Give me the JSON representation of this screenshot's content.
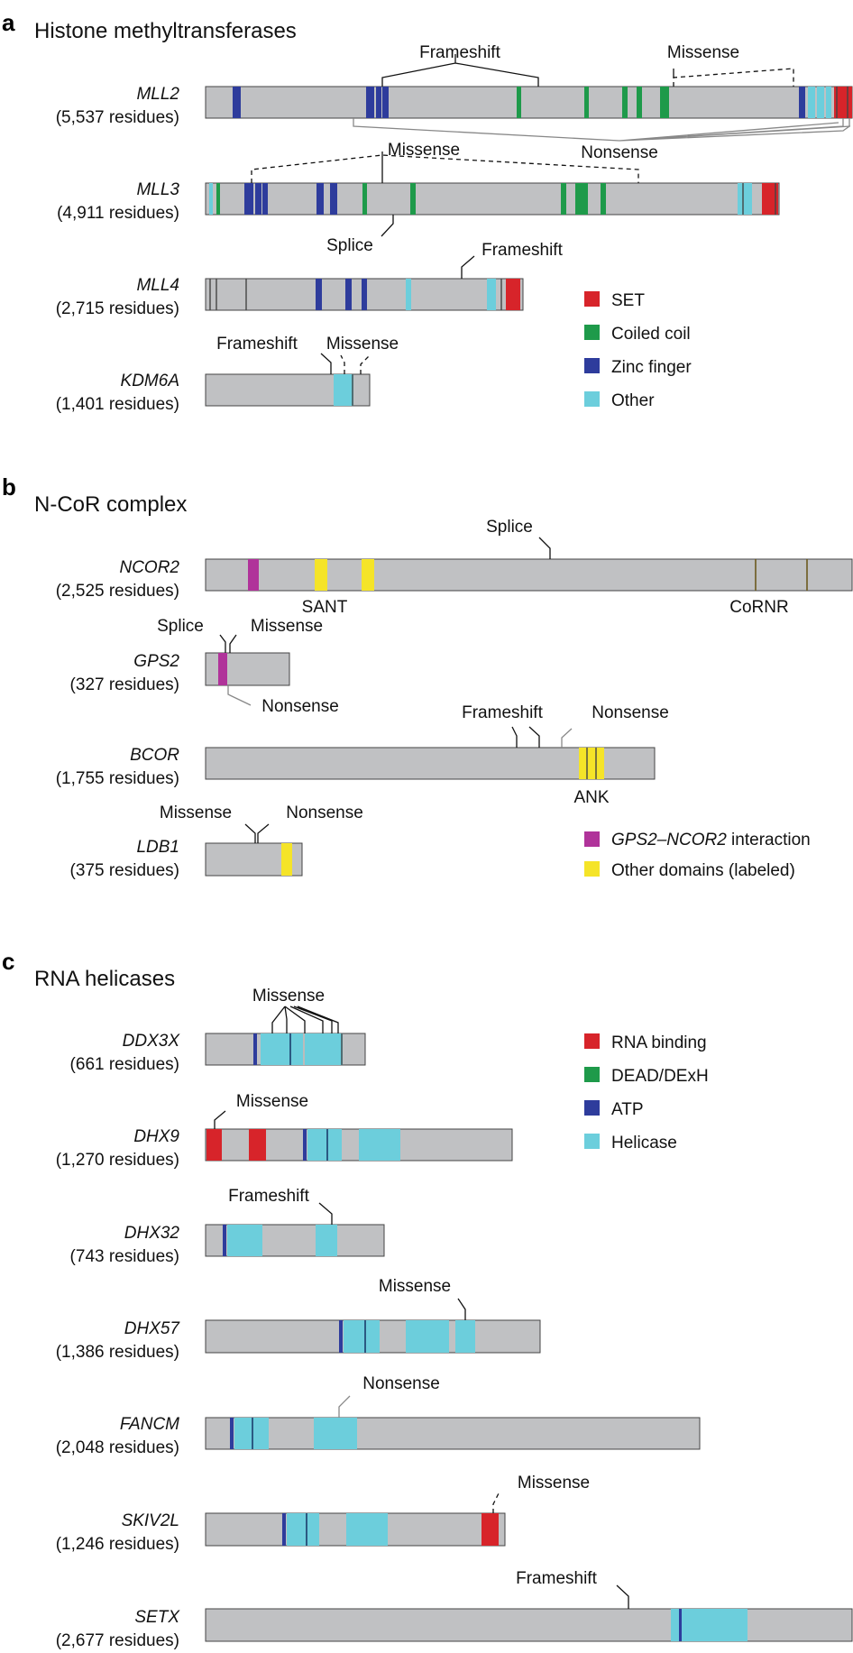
{
  "panels": {
    "a": {
      "letter": "a",
      "title": "Histone methyltransferases",
      "genes": [
        {
          "name": "MLL2",
          "residues": "(5,537 residues)"
        },
        {
          "name": "MLL3",
          "residues": "(4,911 residues)"
        },
        {
          "name": "MLL4",
          "residues": "(2,715 residues)"
        },
        {
          "name": "KDM6A",
          "residues": "(1,401 residues)"
        }
      ],
      "legend": [
        {
          "label": "SET",
          "color": "#d7242a"
        },
        {
          "label": "Coiled coil",
          "color": "#1e9a4a"
        },
        {
          "label": "Zinc finger",
          "color": "#2e3c9c"
        },
        {
          "label": "Other",
          "color": "#6ccedc"
        }
      ],
      "annotations": {
        "mll2_frameshift": "Frameshift",
        "mll2_missense": "Missense",
        "mll2_nonsense": "Nonsense",
        "mll3_missense": "Missense",
        "mll3_splice": "Splice",
        "mll4_frameshift": "Frameshift",
        "kdm6a_frameshift": "Frameshift",
        "kdm6a_missense": "Missense"
      }
    },
    "b": {
      "letter": "b",
      "title": "N-CoR complex",
      "genes": [
        {
          "name": "NCOR2",
          "residues": "(2,525 residues)"
        },
        {
          "name": "GPS2",
          "residues": "(327 residues)"
        },
        {
          "name": "BCOR",
          "residues": "(1,755 residues)"
        },
        {
          "name": "LDB1",
          "residues": "(375 residues)"
        }
      ],
      "legend": [
        {
          "label_italic": "GPS2–NCOR2",
          "label_rest": " interaction",
          "color": "#b0339a"
        },
        {
          "label": "Other domains (labeled)",
          "color": "#f5e428"
        }
      ],
      "annotations": {
        "ncor2_splice": "Splice",
        "ncor2_sant": "SANT",
        "ncor2_cornr": "CoRNR",
        "gps2_splice": "Splice",
        "gps2_missense": "Missense",
        "gps2_nonsense": "Nonsense",
        "bcor_frameshift": "Frameshift",
        "bcor_nonsense": "Nonsense",
        "bcor_ank": "ANK",
        "ldb1_missense": "Missense",
        "ldb1_nonsense": "Nonsense"
      }
    },
    "c": {
      "letter": "c",
      "title": "RNA helicases",
      "genes": [
        {
          "name": "DDX3X",
          "residues": "(661 residues)"
        },
        {
          "name": "DHX9",
          "residues": "(1,270 residues)"
        },
        {
          "name": "DHX32",
          "residues": "(743 residues)"
        },
        {
          "name": "DHX57",
          "residues": "(1,386 residues)"
        },
        {
          "name": "FANCM",
          "residues": "(2,048 residues)"
        },
        {
          "name": "SKIV2L",
          "residues": "(1,246 residues)"
        },
        {
          "name": "SETX",
          "residues": "(2,677 residues)"
        }
      ],
      "legend": [
        {
          "label": "RNA binding",
          "color": "#d7242a"
        },
        {
          "label": "DEAD/DExH",
          "color": "#1e9a4a"
        },
        {
          "label": "ATP",
          "color": "#2e3c9c"
        },
        {
          "label": "Helicase",
          "color": "#6ccedc"
        }
      ],
      "annotations": {
        "ddx3x_missense": "Missense",
        "dhx9_missense": "Missense",
        "dhx32_frameshift": "Frameshift",
        "dhx57_missense": "Missense",
        "fancm_nonsense": "Nonsense",
        "skiv2l_missense": "Missense",
        "setx_frameshift": "Frameshift"
      }
    }
  }
}
